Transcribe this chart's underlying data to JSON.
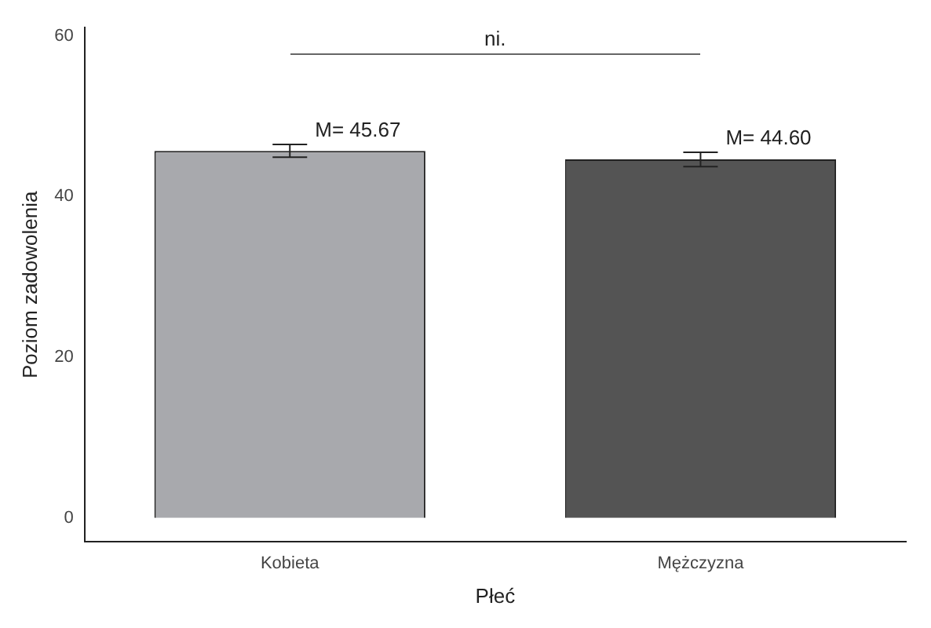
{
  "chart_data": {
    "type": "bar",
    "xlabel": "Płeć",
    "ylabel": "Poziom zadowolenia",
    "categories": [
      "Kobieta",
      "Mężczyzna"
    ],
    "values": [
      45.67,
      44.6
    ],
    "colors": [
      "#a8a9ad",
      "#545454"
    ],
    "errors": [
      0.8,
      0.9
    ],
    "value_labels": [
      "M= 45.67",
      "M= 44.60"
    ],
    "ylim": [
      -3,
      61
    ],
    "yticks": [
      0,
      20,
      40,
      60
    ],
    "grid": false,
    "legend": false,
    "annotations": [
      "ni."
    ]
  }
}
